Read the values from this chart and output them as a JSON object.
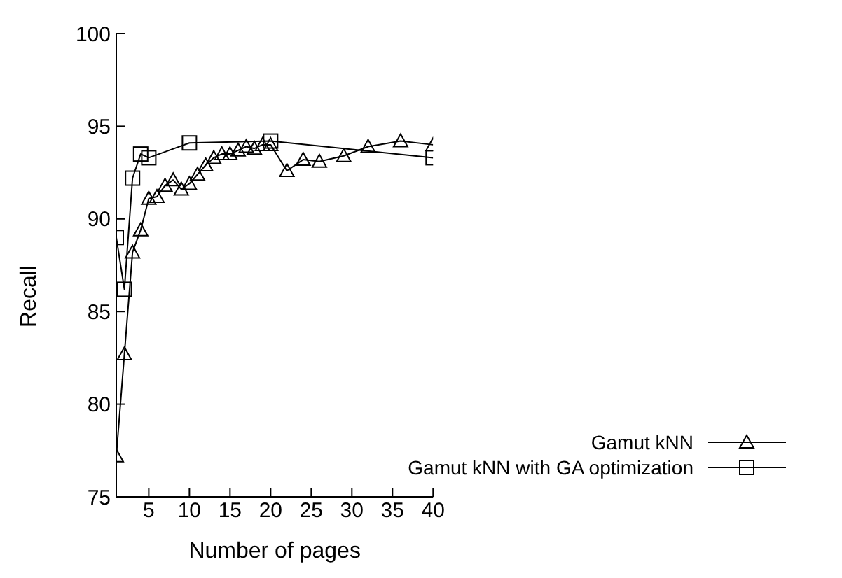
{
  "chart_data": {
    "type": "line",
    "xlabel": "Number of pages",
    "ylabel": "Recall",
    "xlim": [
      1,
      40
    ],
    "xticks": [
      5,
      10,
      15,
      20,
      25,
      30,
      35,
      40
    ],
    "ylim": [
      75,
      100
    ],
    "yticks": [
      75,
      80,
      85,
      90,
      95,
      100
    ],
    "grid": false,
    "legend": "bottom right",
    "line_style": "solid",
    "series": [
      {
        "name": "Gamut kNN",
        "color": "#000000",
        "marker": "triangle",
        "x": [
          1,
          2,
          3,
          4,
          5,
          6,
          7,
          8,
          9,
          10,
          11,
          12,
          13,
          14,
          15,
          16,
          17,
          18,
          19,
          20,
          22,
          24,
          26,
          29,
          32,
          36,
          40
        ],
        "values": [
          77.2,
          82.7,
          88.2,
          89.4,
          91.1,
          91.2,
          91.8,
          92.1,
          91.6,
          91.9,
          92.4,
          92.9,
          93.3,
          93.5,
          93.5,
          93.7,
          93.9,
          93.8,
          94.0,
          94.0,
          92.6,
          93.2,
          93.1,
          93.4,
          93.9,
          94.2,
          94.0
        ]
      },
      {
        "name": "Gamut kNN with GA optimization",
        "color": "#000000",
        "marker": "square",
        "x": [
          1,
          2,
          3,
          4,
          5,
          10,
          20,
          40
        ],
        "values": [
          89.0,
          86.2,
          92.2,
          93.5,
          93.3,
          94.1,
          94.2,
          93.3
        ]
      }
    ]
  }
}
